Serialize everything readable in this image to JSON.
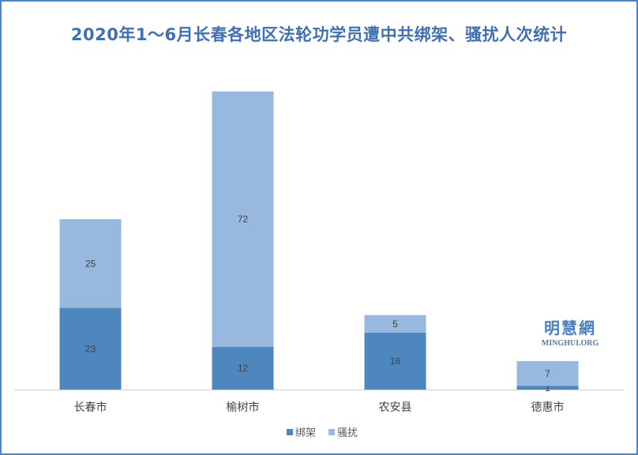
{
  "chart_data": {
    "type": "bar",
    "stacked": true,
    "title": "2020年1～6月长春各地区法轮功学员遭中共绑架、骚扰人次统计",
    "categories": [
      "长春市",
      "榆树市",
      "农安县",
      "德惠市"
    ],
    "series": [
      {
        "name": "绑架",
        "values": [
          23,
          12,
          16,
          1
        ],
        "color": "#4e86be"
      },
      {
        "name": "骚扰",
        "values": [
          25,
          72,
          5,
          7
        ],
        "color": "#97b9df"
      }
    ],
    "ylim": [
      0,
      90
    ],
    "grid": false,
    "legend_position": "bottom"
  },
  "watermark": {
    "text_cn": "明慧網",
    "text_en": "MINGHUI.ORG"
  }
}
